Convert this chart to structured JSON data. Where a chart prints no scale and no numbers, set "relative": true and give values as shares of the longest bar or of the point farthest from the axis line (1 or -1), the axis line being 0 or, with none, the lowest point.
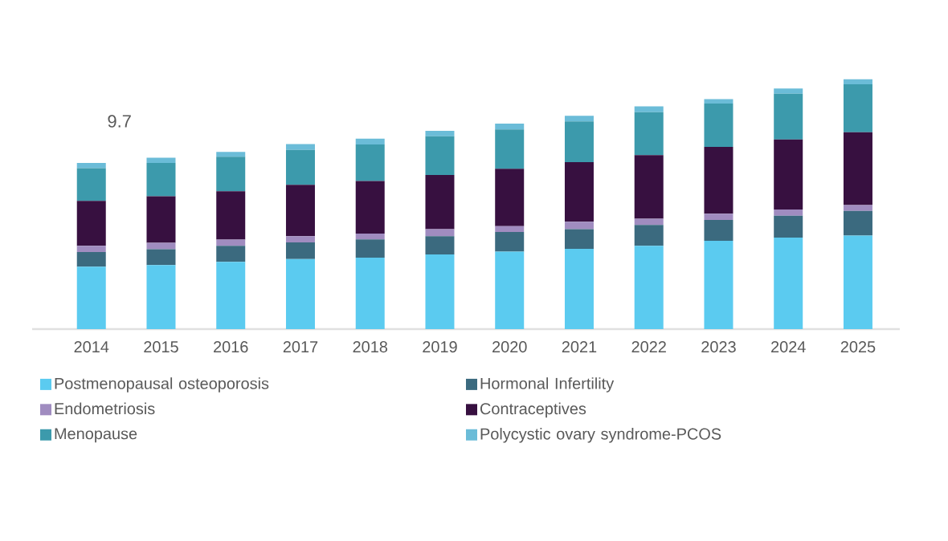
{
  "chart_data": {
    "type": "bar",
    "stacked": true,
    "relative": true,
    "legend": "bottom",
    "categories": [
      "2014",
      "2015",
      "2016",
      "2017",
      "2018",
      "2019",
      "2020",
      "2021",
      "2022",
      "2023",
      "2024",
      "2025"
    ],
    "series": [
      {
        "name": "Postmenopausal osteoporosis",
        "color": "#5bcbf0",
        "values": [
          0.25,
          0.256,
          0.269,
          0.28,
          0.286,
          0.299,
          0.31,
          0.321,
          0.333,
          0.353,
          0.366,
          0.374
        ]
      },
      {
        "name": "Hormonal Infertility",
        "color": "#3b6a7f",
        "values": [
          0.058,
          0.064,
          0.064,
          0.067,
          0.073,
          0.073,
          0.079,
          0.079,
          0.084,
          0.084,
          0.088,
          0.099
        ]
      },
      {
        "name": "Endometriosis",
        "color": "#a08cc0",
        "values": [
          0.025,
          0.025,
          0.025,
          0.025,
          0.023,
          0.028,
          0.023,
          0.03,
          0.025,
          0.025,
          0.025,
          0.023
        ]
      },
      {
        "name": "Contraceptives",
        "color": "#371040",
        "values": [
          0.18,
          0.187,
          0.194,
          0.205,
          0.211,
          0.217,
          0.23,
          0.238,
          0.254,
          0.267,
          0.28,
          0.292
        ]
      },
      {
        "name": "Menopause",
        "color": "#3c9aac",
        "values": [
          0.131,
          0.133,
          0.138,
          0.14,
          0.146,
          0.155,
          0.157,
          0.163,
          0.172,
          0.174,
          0.183,
          0.192
        ]
      },
      {
        "name": "Polycystic ovary syndrome-PCOS",
        "color": "#6bbcd8",
        "values": [
          0.021,
          0.021,
          0.019,
          0.023,
          0.023,
          0.021,
          0.023,
          0.023,
          0.023,
          0.017,
          0.021,
          0.02
        ]
      }
    ],
    "annotations": [
      "9.7"
    ]
  }
}
